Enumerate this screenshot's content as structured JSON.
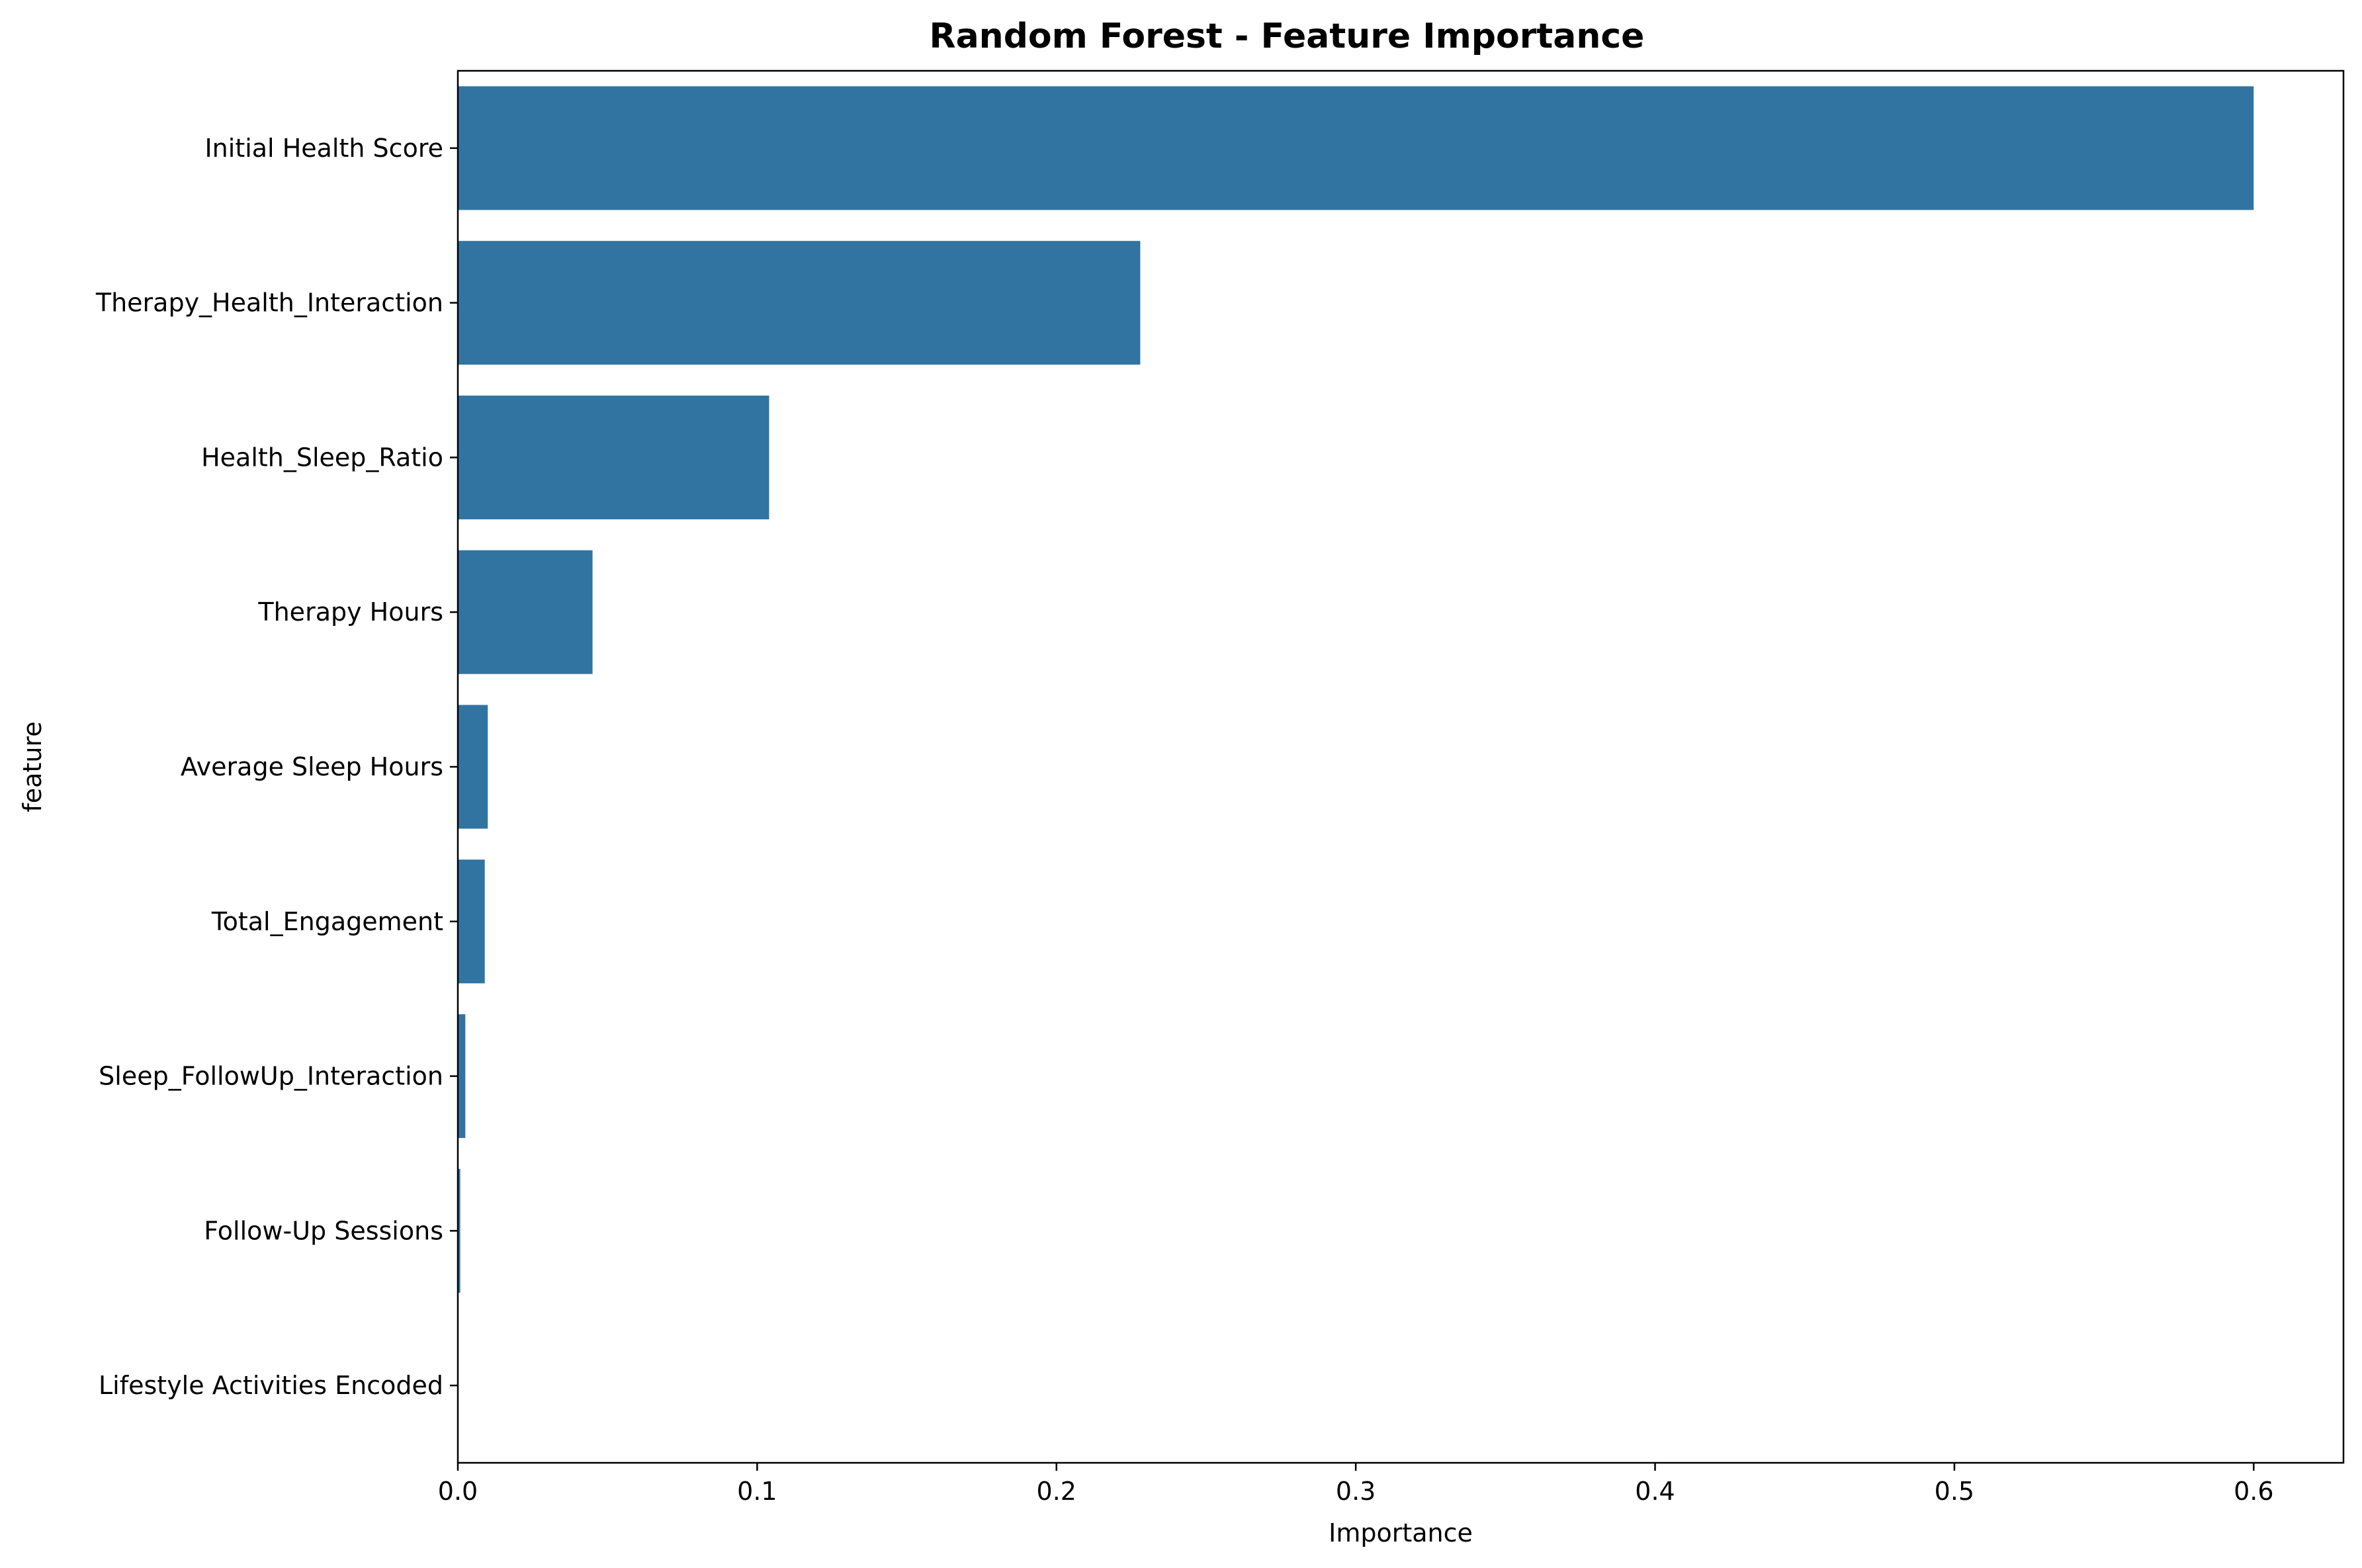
{
  "chart_data": {
    "type": "bar",
    "orientation": "horizontal",
    "title": "Random Forest - Feature Importance",
    "xlabel": "Importance",
    "ylabel": "feature",
    "categories": [
      "Initial Health Score",
      "Therapy_Health_Interaction",
      "Health_Sleep_Ratio",
      "Therapy Hours",
      "Average Sleep Hours",
      "Total_Engagement",
      "Sleep_FollowUp_Interaction",
      "Follow-Up Sessions",
      "Lifestyle Activities Encoded"
    ],
    "values": [
      0.6,
      0.228,
      0.104,
      0.045,
      0.01,
      0.009,
      0.0025,
      0.0008,
      0.0
    ],
    "xlim": [
      0,
      0.63
    ],
    "xticks": [
      0.0,
      0.1,
      0.2,
      0.3,
      0.4,
      0.5,
      0.6
    ],
    "xtick_labels": [
      "0.0",
      "0.1",
      "0.2",
      "0.3",
      "0.4",
      "0.5",
      "0.6"
    ],
    "grid": false,
    "bar_color": "#3274a1"
  }
}
